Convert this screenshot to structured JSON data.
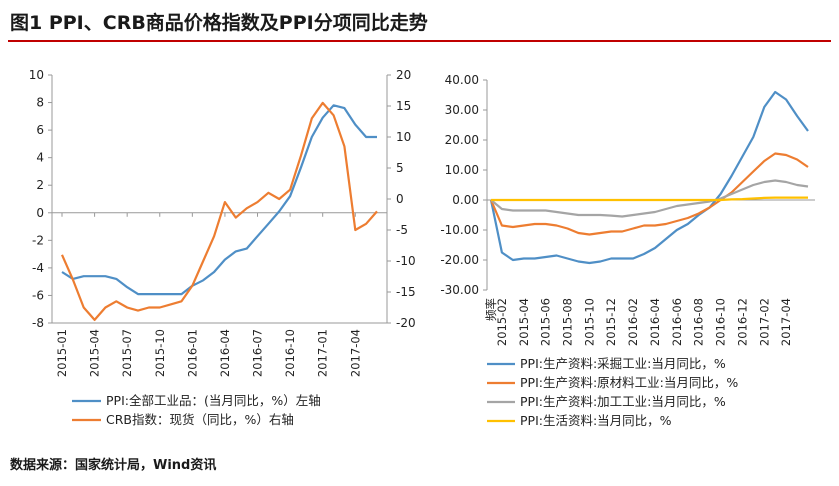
{
  "title": "图1  PPI、CRB商品价格指数及PPI分项同比走势",
  "source": "数据来源：国家统计局，Wind资讯",
  "chart_data": [
    {
      "type": "line",
      "y_left_ticks": [
        "10",
        "8",
        "6",
        "4",
        "2",
        "0",
        "-2",
        "-4",
        "-6",
        "-8"
      ],
      "y_right_ticks": [
        "20",
        "15",
        "10",
        "5",
        "0",
        "-5",
        "-10",
        "-15",
        "-20"
      ],
      "ylim_left": [
        -8,
        10
      ],
      "ylim_right": [
        -20,
        20
      ],
      "x_tick_labels": [
        "2015-01",
        "2015-04",
        "2015-07",
        "2015-10",
        "2016-01",
        "2016-04",
        "2016-07",
        "2016-10",
        "2017-01",
        "2017-04"
      ],
      "legend_placement": "bottom",
      "series": [
        {
          "name": "PPI:全部工业品：(当月同比，%）左轴",
          "color": "#4f8fc6",
          "axis": "left",
          "values": [
            -4.3,
            -4.8,
            -4.6,
            -4.6,
            -4.6,
            -4.8,
            -5.4,
            -5.9,
            -5.9,
            -5.9,
            -5.9,
            -5.9,
            -5.3,
            -4.9,
            -4.3,
            -3.4,
            -2.8,
            -2.6,
            -1.7,
            -0.8,
            0.1,
            1.2,
            3.3,
            5.5,
            6.9,
            7.8,
            7.6,
            6.4,
            5.5,
            5.5
          ]
        },
        {
          "name": "CRB指数：现货（同比，%）右轴",
          "color": "#ed7d31",
          "axis": "right",
          "values": [
            -9,
            -13,
            -17.5,
            -19.5,
            -17.5,
            -16.5,
            -17.5,
            -18,
            -17.5,
            -17.5,
            -17,
            -16.5,
            -14,
            -10,
            -6,
            -0.5,
            -3,
            -1.5,
            -0.5,
            1,
            0,
            1.5,
            7,
            13,
            15.5,
            13.5,
            8.5,
            -5,
            -4,
            -2
          ]
        }
      ]
    },
    {
      "type": "line",
      "y_ticks": [
        "40.00",
        "30.00",
        "20.00",
        "10.00",
        "0.00",
        "-10.00",
        "-20.00",
        "-30.00"
      ],
      "ylim": [
        -30,
        40
      ],
      "x_tick_labels": [
        "频率",
        "2015-02",
        "2015-04",
        "2015-06",
        "2015-08",
        "2015-10",
        "2015-12",
        "2016-02",
        "2016-04",
        "2016-06",
        "2016-08",
        "2016-10",
        "2016-12",
        "2017-02",
        "2017-04"
      ],
      "legend_placement": "bottom",
      "series": [
        {
          "name": "PPI:生产资料:采掘工业:当月同比，%",
          "color": "#4f8fc6",
          "values": [
            0,
            -17.5,
            -20,
            -19.5,
            -19.5,
            -19,
            -18.5,
            -19.5,
            -20.5,
            -21,
            -20.5,
            -19.5,
            -19.5,
            -19.5,
            -18,
            -16,
            -13,
            -10,
            -8,
            -5,
            -2.5,
            2,
            8,
            14.5,
            21,
            31,
            36,
            33.5,
            28,
            23
          ]
        },
        {
          "name": "PPI:生产资料:原材料工业:当月同比，%",
          "color": "#ed7d31",
          "values": [
            0,
            -8.5,
            -9,
            -8.5,
            -8,
            -8,
            -8.5,
            -9.5,
            -11,
            -11.5,
            -11,
            -10.5,
            -10.5,
            -9.5,
            -8.5,
            -8.5,
            -8,
            -7,
            -6,
            -4.5,
            -2.5,
            0,
            2.5,
            6,
            9.5,
            13,
            15.5,
            15,
            13.5,
            11
          ]
        },
        {
          "name": "PPI:生产资料:加工工业:当月同比，%",
          "color": "#a5a5a5",
          "values": [
            0,
            -3,
            -3.5,
            -3.5,
            -3.5,
            -3.5,
            -4,
            -4.5,
            -5,
            -5,
            -5,
            -5.2,
            -5.5,
            -5,
            -4.5,
            -4,
            -3,
            -2,
            -1.5,
            -1,
            -0.5,
            0.5,
            2,
            3.5,
            5,
            6,
            6.5,
            6,
            5,
            4.5
          ]
        },
        {
          "name": "PPI:生活资料:当月同比，%",
          "color": "#ffc000",
          "values": [
            0,
            0,
            0,
            0,
            0,
            0,
            0,
            0,
            0,
            0,
            0,
            0,
            0,
            0,
            0,
            0,
            0,
            0,
            0,
            0,
            0,
            0,
            0.2,
            0.3,
            0.5,
            0.7,
            0.8,
            0.8,
            0.8,
            0.8
          ]
        }
      ]
    }
  ]
}
